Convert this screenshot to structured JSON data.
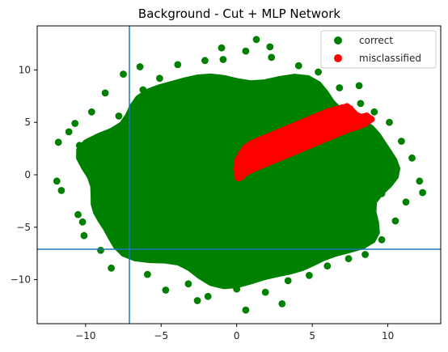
{
  "chart_data": {
    "type": "scatter",
    "title": "Background - Cut + MLP Network",
    "xlabel": "",
    "ylabel": "",
    "xlim": [
      -13.2,
      13.5
    ],
    "ylim": [
      -14.2,
      14.2
    ],
    "xticks": [
      -10,
      -5,
      0,
      5,
      10
    ],
    "yticks": [
      -10,
      -5,
      0,
      5,
      10
    ],
    "grid": false,
    "legend_position": "top-right",
    "series": [
      {
        "name": "correct",
        "color": "#008000",
        "description_points": "dense elliptical cloud centred near (0, 0); x spread about -12 to 12, y spread about -13 to 13",
        "points": [
          [
            -11.9,
            -0.6
          ],
          [
            -11.6,
            -1.5
          ],
          [
            -11.8,
            3.1
          ],
          [
            -11.1,
            4.1
          ],
          [
            -10.7,
            4.9
          ],
          [
            -10.4,
            2.8
          ],
          [
            -10.2,
            -4.5
          ],
          [
            -10.5,
            -3.8
          ],
          [
            -10.1,
            -5.8
          ],
          [
            -9.6,
            6.0
          ],
          [
            -9.3,
            -3.1
          ],
          [
            -9.0,
            -7.2
          ],
          [
            -8.7,
            7.8
          ],
          [
            -8.3,
            -8.9
          ],
          [
            -7.5,
            9.6
          ],
          [
            -6.4,
            10.3
          ],
          [
            -5.9,
            -9.5
          ],
          [
            -5.1,
            9.2
          ],
          [
            -4.7,
            -11.0
          ],
          [
            -3.9,
            10.5
          ],
          [
            -3.2,
            -10.4
          ],
          [
            -2.1,
            10.9
          ],
          [
            -1.9,
            -11.6
          ],
          [
            -0.9,
            11.0
          ],
          [
            0.0,
            -10.9
          ],
          [
            0.6,
            11.8
          ],
          [
            0.6,
            -12.9
          ],
          [
            1.3,
            12.9
          ],
          [
            1.9,
            -11.2
          ],
          [
            2.3,
            11.2
          ],
          [
            3.4,
            -10.1
          ],
          [
            4.1,
            10.4
          ],
          [
            4.8,
            -9.6
          ],
          [
            5.4,
            9.8
          ],
          [
            6.0,
            -8.7
          ],
          [
            6.8,
            8.3
          ],
          [
            7.4,
            -8.0
          ],
          [
            8.1,
            8.5
          ],
          [
            8.5,
            -7.6
          ],
          [
            9.1,
            6.0
          ],
          [
            9.6,
            -6.2
          ],
          [
            10.1,
            5.0
          ],
          [
            10.5,
            -4.4
          ],
          [
            10.9,
            3.2
          ],
          [
            11.2,
            -2.6
          ],
          [
            11.6,
            1.6
          ],
          [
            12.1,
            -0.6
          ],
          [
            12.3,
            -1.7
          ],
          [
            -8.9,
            2.6
          ],
          [
            -9.4,
            -1.2
          ],
          [
            -8.2,
            -5.5
          ],
          [
            -7.8,
            5.6
          ],
          [
            -6.9,
            -7.6
          ],
          [
            -6.2,
            8.1
          ],
          [
            9.2,
            2.1
          ],
          [
            9.6,
            -1.8
          ],
          [
            8.8,
            -5.1
          ],
          [
            8.2,
            6.8
          ],
          [
            7.1,
            -7.1
          ],
          [
            2.2,
            12.2
          ],
          [
            -1.0,
            12.1
          ],
          [
            -2.6,
            -12.0
          ],
          [
            3.0,
            -12.3
          ]
        ]
      },
      {
        "name": "misclassified",
        "color": "#ff0000",
        "description_points": "elongated band from about (0, 0) to (8.5, 6), roughly 3 units thick, upper edge y = 1 + 0.6x",
        "points": [
          [
            0.1,
            -0.3
          ],
          [
            0.0,
            0.6
          ],
          [
            0.1,
            1.5
          ],
          [
            0.3,
            2.0
          ],
          [
            0.6,
            2.6
          ],
          [
            1.0,
            3.0
          ],
          [
            1.5,
            3.3
          ],
          [
            2.0,
            3.6
          ],
          [
            2.5,
            3.9
          ],
          [
            3.0,
            4.2
          ],
          [
            3.5,
            4.5
          ],
          [
            4.0,
            4.8
          ],
          [
            4.5,
            5.1
          ],
          [
            5.0,
            5.4
          ],
          [
            5.5,
            5.7
          ],
          [
            6.0,
            6.0
          ],
          [
            6.5,
            6.2
          ],
          [
            7.0,
            6.4
          ],
          [
            7.3,
            6.5
          ],
          [
            7.5,
            6.3
          ],
          [
            7.9,
            5.7
          ],
          [
            8.2,
            5.5
          ],
          [
            8.6,
            5.6
          ],
          [
            8.9,
            5.3
          ],
          [
            8.5,
            4.9
          ],
          [
            8.0,
            4.6
          ],
          [
            7.5,
            4.4
          ],
          [
            7.0,
            4.1
          ],
          [
            6.5,
            3.8
          ],
          [
            6.0,
            3.5
          ],
          [
            5.5,
            3.2
          ],
          [
            5.0,
            2.9
          ],
          [
            4.5,
            2.6
          ],
          [
            4.0,
            2.3
          ],
          [
            3.5,
            2.0
          ],
          [
            3.0,
            1.7
          ],
          [
            2.5,
            1.4
          ],
          [
            2.0,
            1.1
          ],
          [
            1.5,
            0.8
          ],
          [
            1.0,
            0.5
          ],
          [
            0.6,
            0.2
          ],
          [
            0.3,
            -0.2
          ],
          [
            2.0,
            2.4
          ],
          [
            3.0,
            3.0
          ],
          [
            4.0,
            3.6
          ],
          [
            5.0,
            4.2
          ],
          [
            6.0,
            4.8
          ],
          [
            7.0,
            5.3
          ],
          [
            1.0,
            1.8
          ],
          [
            1.5,
            2.5
          ],
          [
            2.5,
            3.0
          ],
          [
            3.5,
            3.4
          ],
          [
            4.5,
            4.0
          ],
          [
            5.5,
            4.6
          ],
          [
            6.5,
            5.2
          ]
        ]
      }
    ],
    "reference_lines": [
      {
        "orientation": "vertical",
        "x": -7.1,
        "color": "#1f77b4"
      },
      {
        "orientation": "horizontal",
        "y": -7.1,
        "color": "#1f77b4"
      }
    ]
  }
}
